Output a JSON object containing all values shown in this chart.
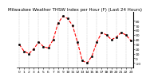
{
  "title": "Milwaukee Weather THSW Index per Hour (F) (Last 24 Hours)",
  "x_values": [
    0,
    1,
    2,
    3,
    4,
    5,
    6,
    7,
    8,
    9,
    10,
    11,
    12,
    13,
    14,
    15,
    16,
    17,
    18,
    19,
    20,
    21,
    22,
    23
  ],
  "y_values": [
    30,
    15,
    10,
    20,
    35,
    25,
    22,
    40,
    75,
    90,
    85,
    70,
    35,
    -5,
    -10,
    5,
    35,
    55,
    50,
    40,
    45,
    55,
    50,
    38
  ],
  "line_color": "#ff0000",
  "marker_color": "#000000",
  "bg_color": "#ffffff",
  "grid_color": "#aaaaaa",
  "ylim": [
    -20,
    100
  ],
  "xlim": [
    -0.5,
    23.5
  ],
  "title_fontsize": 4.0,
  "tick_fontsize": 3.2,
  "line_width": 0.8,
  "marker_size": 1.8,
  "grid_positions": [
    0,
    2,
    4,
    6,
    8,
    10,
    12,
    14,
    16,
    18,
    20,
    22
  ],
  "ytick_values": [
    -10,
    0,
    10,
    20,
    30,
    40,
    50,
    60,
    70,
    80
  ],
  "xtick_labels": [
    "0",
    "1",
    "2",
    "3",
    "4",
    "5",
    "6",
    "7",
    "8",
    "9",
    "10",
    "11",
    "12",
    "13",
    "14",
    "15",
    "16",
    "17",
    "18",
    "19",
    "20",
    "21",
    "22",
    "23"
  ]
}
